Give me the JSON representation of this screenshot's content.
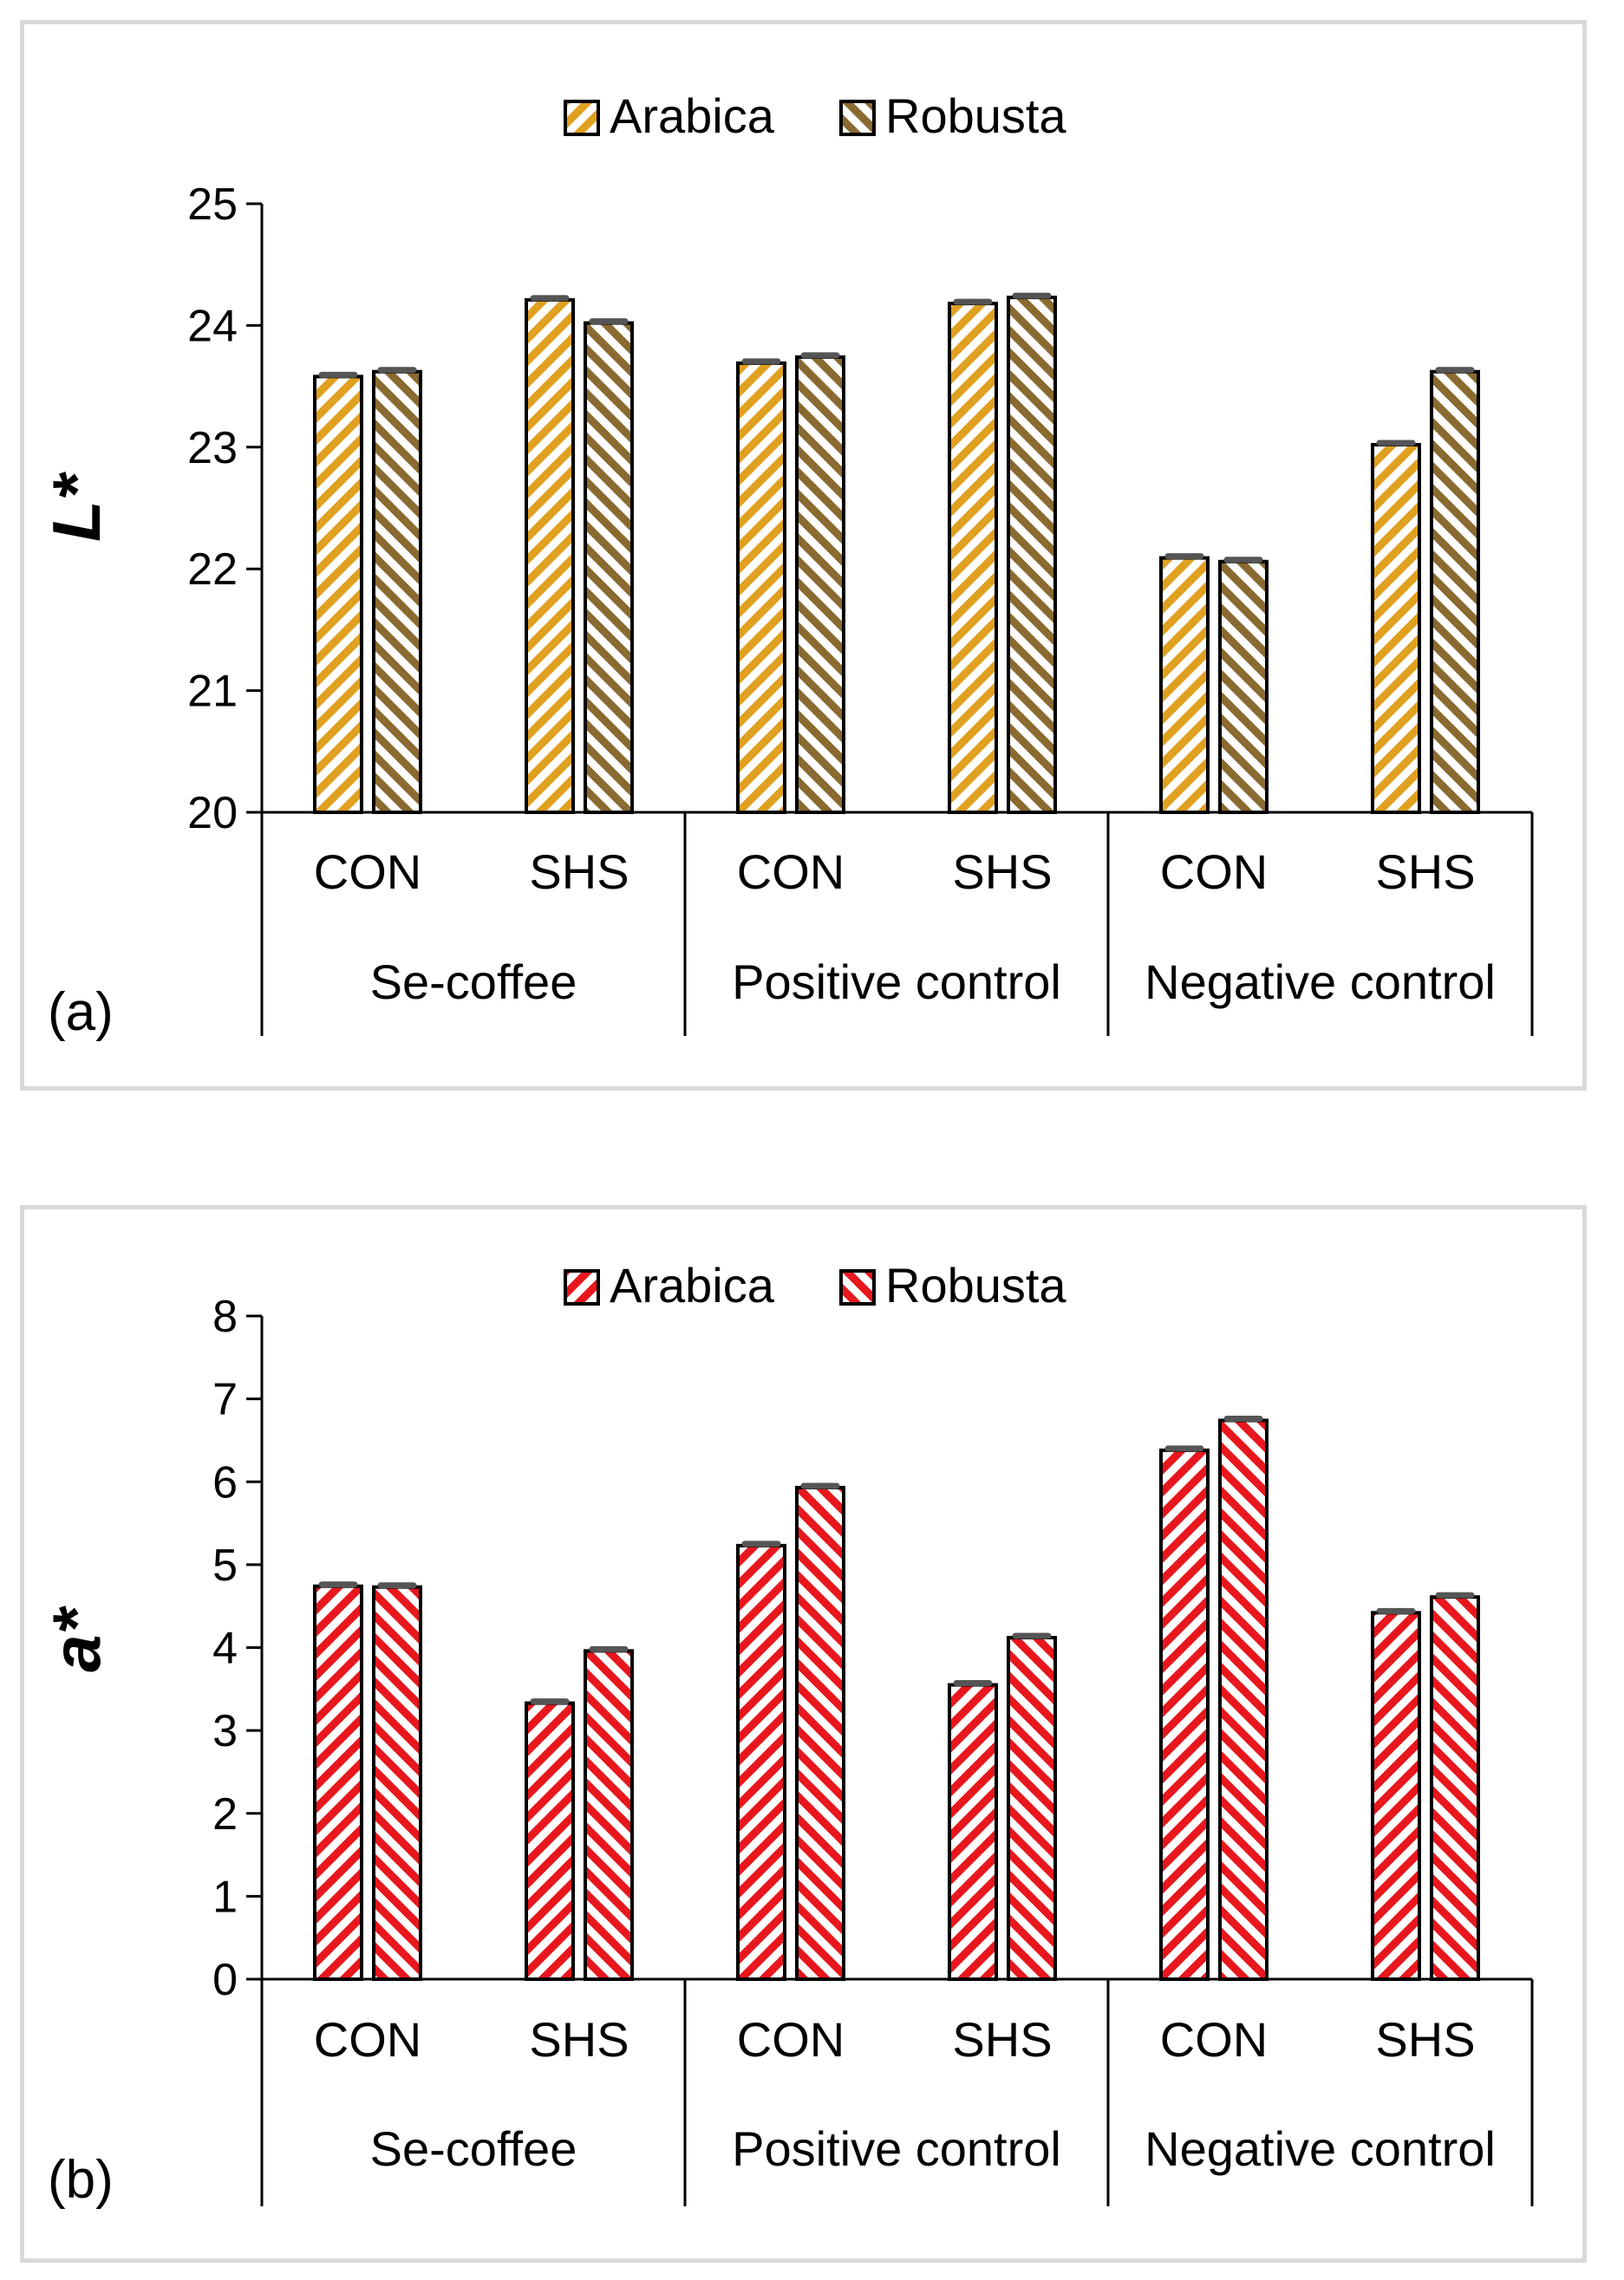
{
  "chart_data": [
    {
      "type": "bar",
      "panel_label": "(a)",
      "ylabel": "L*",
      "ylim": [
        20,
        25
      ],
      "yticks": [
        20,
        21,
        22,
        23,
        24,
        25
      ],
      "groups": [
        "Se-coffee",
        "Positive control",
        "Negative control"
      ],
      "categories": [
        "CON",
        "SHS",
        "CON",
        "SHS",
        "CON",
        "SHS"
      ],
      "legend_position": "top-center",
      "series": [
        {
          "name": "Arabica",
          "values": [
            23.58,
            24.21,
            23.69,
            24.18,
            22.09,
            23.02
          ],
          "color": "#e0a020"
        },
        {
          "name": "Robusta",
          "values": [
            23.62,
            24.02,
            23.74,
            24.23,
            22.06,
            23.62
          ],
          "color": "#8a6a30"
        }
      ]
    },
    {
      "type": "bar",
      "panel_label": "(b)",
      "ylabel": "a*",
      "ylim": [
        0,
        8
      ],
      "yticks": [
        0,
        1,
        2,
        3,
        4,
        5,
        6,
        7,
        8
      ],
      "groups": [
        "Se-coffee",
        "Positive control",
        "Negative control"
      ],
      "categories": [
        "CON",
        "SHS",
        "CON",
        "SHS",
        "CON",
        "SHS"
      ],
      "legend_position": "top-center",
      "series": [
        {
          "name": "Arabica",
          "values": [
            4.74,
            3.33,
            5.23,
            3.55,
            6.38,
            4.42
          ],
          "color": "#e8171d"
        },
        {
          "name": "Robusta",
          "values": [
            4.73,
            3.96,
            5.93,
            4.12,
            6.74,
            4.61
          ],
          "color": "#e8171d"
        }
      ]
    }
  ]
}
